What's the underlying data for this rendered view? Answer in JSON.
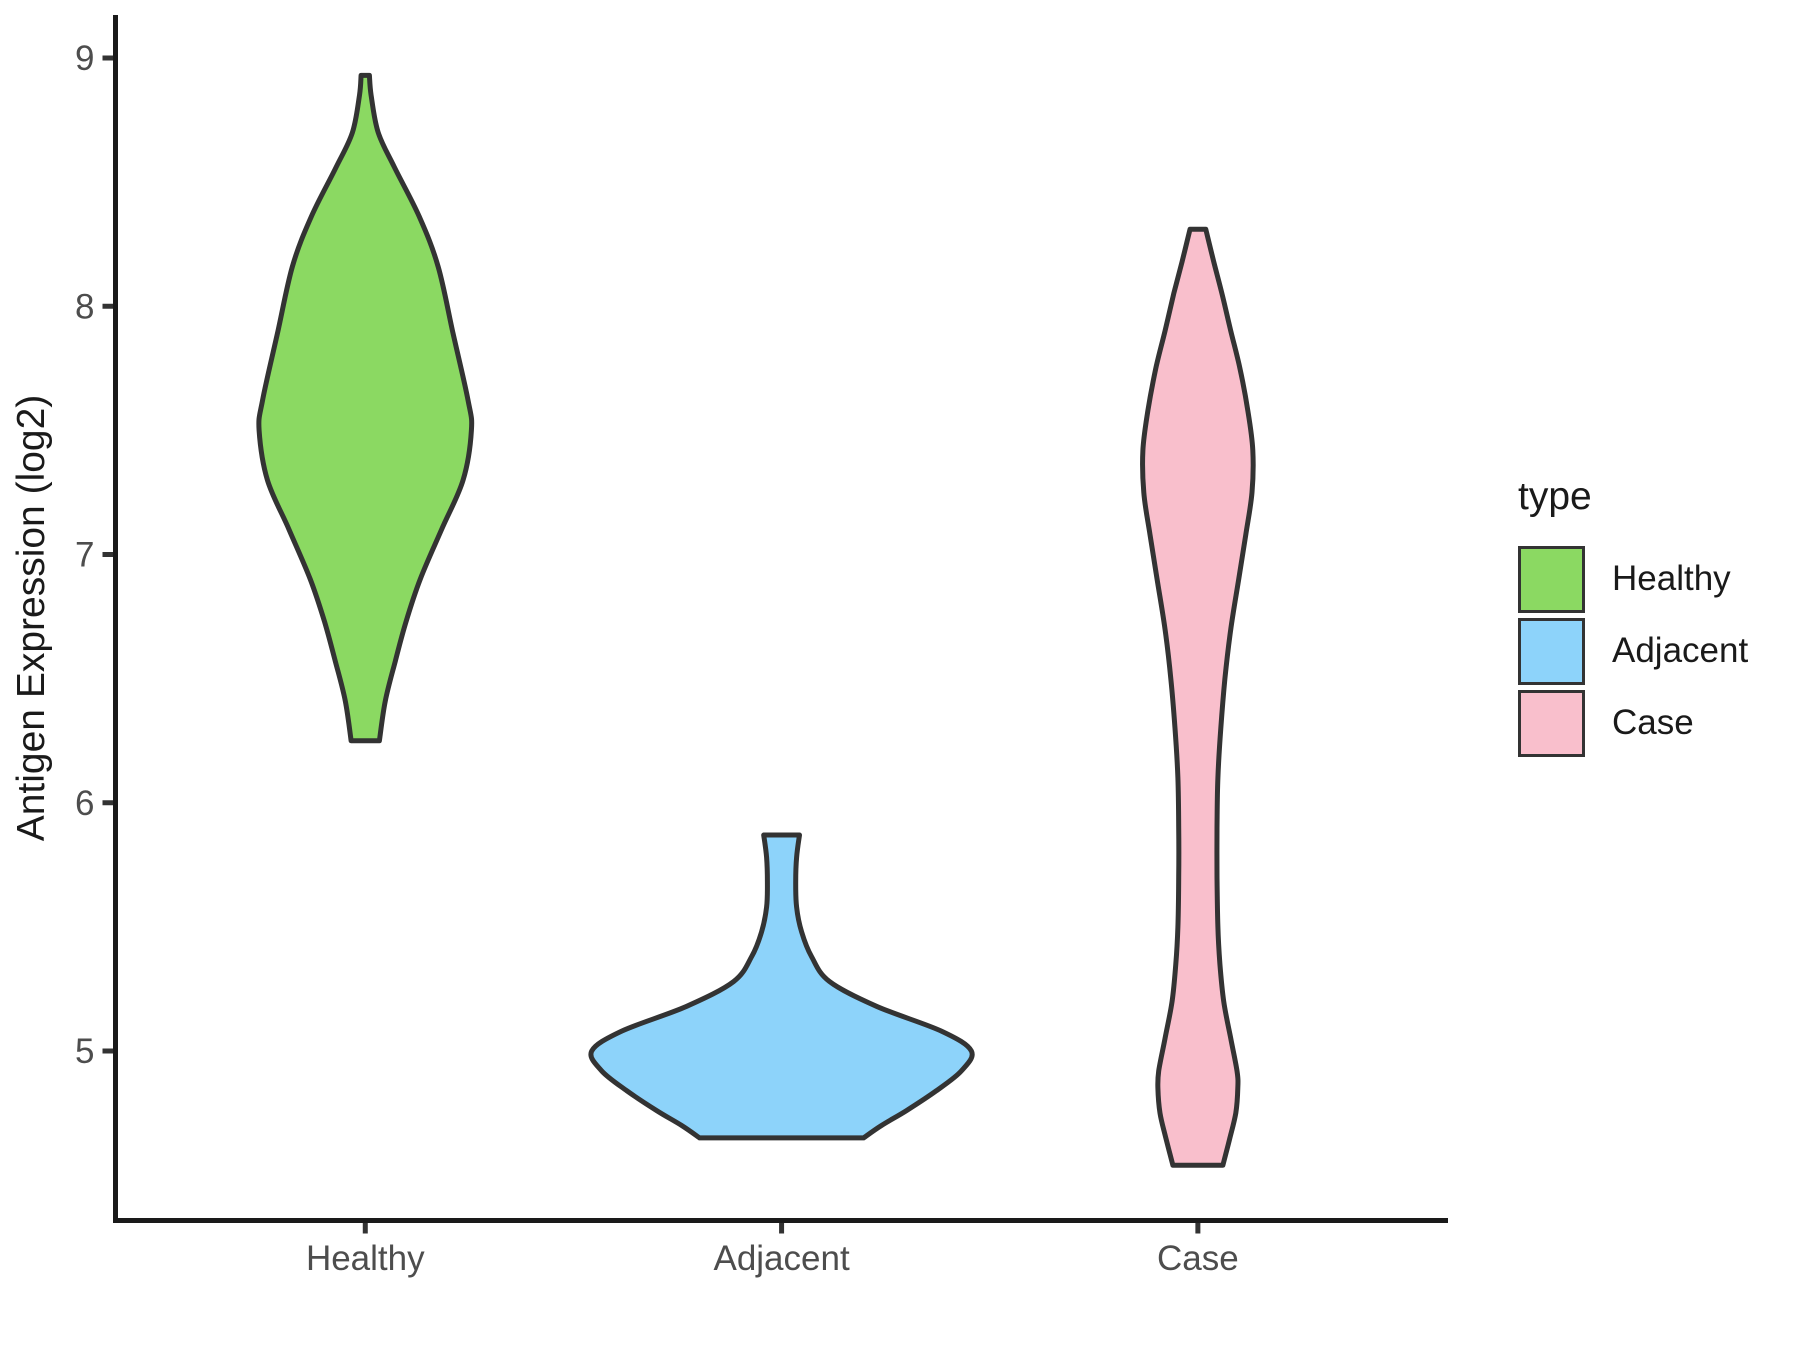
{
  "chart_data": {
    "type": "violin",
    "title": "",
    "xlabel": "",
    "ylabel": "Antigen Expression (log2)",
    "categories": [
      "Healthy",
      "Adjacent",
      "Case"
    ],
    "y_ticks": [
      "5",
      "6",
      "7",
      "8",
      "9"
    ],
    "y_tick_values": [
      5,
      6,
      7,
      8,
      9
    ],
    "ylim": [
      4.3,
      9.05
    ],
    "grid": "off",
    "legend_position": "right",
    "colors": {
      "outline": "#333333",
      "axis": "#1a1a1a",
      "tick": "#333333",
      "tick_label": "#4d4d4d",
      "axis_title": "#1a1a1a"
    },
    "legend": {
      "title": "type",
      "entries": [
        {
          "label": "Healthy",
          "color": "#8bd962"
        },
        {
          "label": "Adjacent",
          "color": "#8dd3fa"
        },
        {
          "label": "Case",
          "color": "#f9bfcc"
        }
      ]
    },
    "series": [
      {
        "name": "Healthy",
        "x": 1,
        "color": "#8bd962",
        "value_range": [
          6.25,
          8.93
        ],
        "profile": [
          [
            8.93,
            0.01
          ],
          [
            8.85,
            0.014
          ],
          [
            8.7,
            0.031
          ],
          [
            8.56,
            0.07
          ],
          [
            8.36,
            0.13
          ],
          [
            8.16,
            0.175
          ],
          [
            7.89,
            0.211
          ],
          [
            7.62,
            0.247
          ],
          [
            7.5,
            0.255
          ],
          [
            7.3,
            0.235
          ],
          [
            7.1,
            0.183
          ],
          [
            6.9,
            0.132
          ],
          [
            6.73,
            0.098
          ],
          [
            6.57,
            0.072
          ],
          [
            6.41,
            0.048
          ],
          [
            6.25,
            0.034
          ]
        ]
      },
      {
        "name": "Adjacent",
        "x": 2,
        "color": "#8dd3fa",
        "value_range": [
          4.65,
          5.87
        ],
        "profile": [
          [
            5.87,
            0.043
          ],
          [
            5.78,
            0.036
          ],
          [
            5.68,
            0.034
          ],
          [
            5.58,
            0.036
          ],
          [
            5.48,
            0.048
          ],
          [
            5.38,
            0.072
          ],
          [
            5.28,
            0.115
          ],
          [
            5.18,
            0.228
          ],
          [
            5.08,
            0.384
          ],
          [
            5.0,
            0.456
          ],
          [
            4.92,
            0.432
          ],
          [
            4.84,
            0.372
          ],
          [
            4.76,
            0.3
          ],
          [
            4.7,
            0.24
          ],
          [
            4.65,
            0.197
          ]
        ]
      },
      {
        "name": "Case",
        "x": 3,
        "color": "#f9bfcc",
        "value_range": [
          4.54,
          8.31
        ],
        "profile": [
          [
            8.31,
            0.019
          ],
          [
            8.18,
            0.038
          ],
          [
            8.05,
            0.058
          ],
          [
            7.9,
            0.079
          ],
          [
            7.75,
            0.101
          ],
          [
            7.58,
            0.12
          ],
          [
            7.42,
            0.132
          ],
          [
            7.25,
            0.13
          ],
          [
            7.08,
            0.115
          ],
          [
            6.9,
            0.098
          ],
          [
            6.7,
            0.079
          ],
          [
            6.5,
            0.065
          ],
          [
            6.3,
            0.055
          ],
          [
            6.1,
            0.048
          ],
          [
            5.9,
            0.046
          ],
          [
            5.7,
            0.046
          ],
          [
            5.5,
            0.048
          ],
          [
            5.35,
            0.053
          ],
          [
            5.2,
            0.062
          ],
          [
            5.05,
            0.079
          ],
          [
            4.92,
            0.094
          ],
          [
            4.85,
            0.096
          ],
          [
            4.75,
            0.091
          ],
          [
            4.65,
            0.077
          ],
          [
            4.54,
            0.06
          ]
        ]
      }
    ]
  }
}
